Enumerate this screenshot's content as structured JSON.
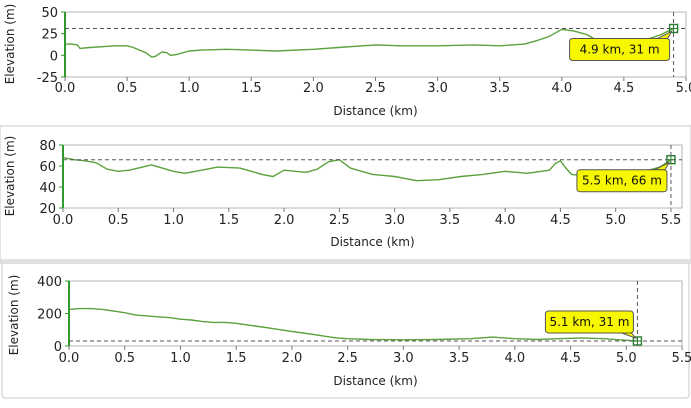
{
  "chart_data": [
    {
      "type": "line",
      "xlabel": "Distance (km)",
      "ylabel": "Elevation (m)",
      "xlim": [
        0,
        5.0
      ],
      "ylim": [
        -25,
        50
      ],
      "xticks": [
        "0.0",
        "0.5",
        "1.0",
        "1.5",
        "2.0",
        "2.5",
        "3.0",
        "3.5",
        "4.0",
        "4.5",
        "5.0"
      ],
      "yticks": [
        "-25",
        "0",
        "25",
        "50"
      ],
      "grid": false,
      "line_color": "#5aa23c",
      "marker": {
        "x": 4.9,
        "y": 31,
        "label": "4.9 km, 31 m"
      },
      "series": [
        {
          "x": [
            0.0,
            0.05,
            0.1,
            0.12,
            0.2,
            0.3,
            0.4,
            0.5,
            0.55,
            0.6,
            0.65,
            0.7,
            0.73,
            0.78,
            0.82,
            0.85,
            0.9,
            0.95,
            1.0,
            1.1,
            1.3,
            1.5,
            1.7,
            2.0,
            2.2,
            2.5,
            2.7,
            3.0,
            3.3,
            3.5,
            3.7,
            3.8,
            3.9,
            3.95,
            4.0,
            4.05,
            4.1,
            4.15,
            4.2,
            4.3,
            4.4,
            4.5,
            4.6,
            4.7,
            4.8,
            4.9
          ],
          "y": [
            13,
            13,
            12,
            8,
            9,
            10,
            11,
            11,
            9,
            6,
            3,
            -2,
            -1,
            4,
            3,
            0,
            1,
            3,
            5,
            6,
            7,
            6,
            5,
            7,
            9,
            12,
            11,
            11,
            12,
            11,
            13,
            17,
            22,
            26,
            30,
            29,
            28,
            26,
            24,
            16,
            14,
            16,
            17,
            19,
            24,
            31
          ]
        }
      ]
    },
    {
      "type": "line",
      "xlabel": "Distance (km)",
      "ylabel": "Elevation (m)",
      "xlim": [
        0,
        5.6
      ],
      "ylim": [
        20,
        80
      ],
      "xticks": [
        "0.0",
        "0.5",
        "1.0",
        "1.5",
        "2.0",
        "2.5",
        "3.0",
        "3.5",
        "4.0",
        "4.5",
        "5.0",
        "5.5"
      ],
      "yticks": [
        "20",
        "40",
        "60",
        "80"
      ],
      "grid": false,
      "line_color": "#5aa23c",
      "marker": {
        "x": 5.5,
        "y": 66,
        "label": "5.5 km, 66 m"
      },
      "series": [
        {
          "x": [
            0.0,
            0.1,
            0.2,
            0.3,
            0.4,
            0.5,
            0.6,
            0.8,
            1.0,
            1.1,
            1.2,
            1.4,
            1.6,
            1.8,
            1.9,
            2.0,
            2.1,
            2.2,
            2.3,
            2.4,
            2.5,
            2.6,
            2.8,
            3.0,
            3.2,
            3.4,
            3.6,
            3.8,
            4.0,
            4.2,
            4.4,
            4.45,
            4.5,
            4.55,
            4.6,
            4.8,
            5.0,
            5.2,
            5.4,
            5.5
          ],
          "y": [
            68,
            66,
            65,
            63,
            57,
            55,
            56,
            61,
            55,
            53,
            55,
            59,
            58,
            52,
            50,
            56,
            55,
            54,
            57,
            64,
            66,
            58,
            52,
            50,
            46,
            47,
            50,
            52,
            55,
            53,
            56,
            62,
            65,
            58,
            52,
            50,
            51,
            53,
            59,
            66
          ]
        }
      ]
    },
    {
      "type": "line",
      "xlabel": "Distance (km)",
      "ylabel": "Elevation (m)",
      "xlim": [
        0,
        5.5
      ],
      "ylim": [
        0,
        400
      ],
      "xticks": [
        "0.0",
        "0.5",
        "1.0",
        "1.5",
        "2.0",
        "2.5",
        "3.0",
        "3.5",
        "4.0",
        "4.5",
        "5.0",
        "5.5"
      ],
      "yticks": [
        "0",
        "200",
        "400"
      ],
      "grid": false,
      "line_color": "#5aa23c",
      "marker": {
        "x": 5.1,
        "y": 31,
        "label": "5.1 km, 31 m"
      },
      "series": [
        {
          "x": [
            0.0,
            0.1,
            0.2,
            0.3,
            0.4,
            0.5,
            0.6,
            0.7,
            0.8,
            0.9,
            1.0,
            1.1,
            1.2,
            1.3,
            1.4,
            1.5,
            1.6,
            1.7,
            1.8,
            1.9,
            2.0,
            2.1,
            2.2,
            2.3,
            2.4,
            2.5,
            2.7,
            3.0,
            3.3,
            3.6,
            3.8,
            4.0,
            4.2,
            4.4,
            4.6,
            4.8,
            5.0,
            5.1
          ],
          "y": [
            225,
            230,
            230,
            225,
            215,
            205,
            190,
            185,
            180,
            175,
            165,
            160,
            150,
            145,
            145,
            140,
            130,
            120,
            110,
            100,
            90,
            80,
            70,
            60,
            50,
            45,
            40,
            38,
            40,
            45,
            55,
            45,
            40,
            45,
            50,
            45,
            35,
            31
          ]
        }
      ]
    }
  ]
}
